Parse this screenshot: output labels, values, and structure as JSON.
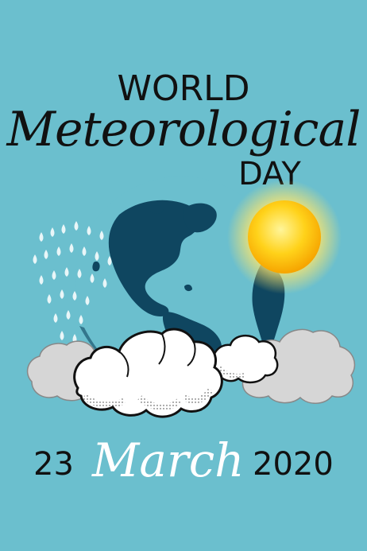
{
  "title": {
    "line1": "WORLD",
    "line2": "Meteorological",
    "line3": "DAY"
  },
  "date": {
    "day": "23",
    "month": "March",
    "year": "2020"
  },
  "colors": {
    "background": "#6bbfce",
    "globe": "#0f4660",
    "sun": "#ffd21a",
    "cloud_white": "#ffffff",
    "cloud_grey": "#d6d6d6",
    "raindrop": "#e9f6f8"
  }
}
